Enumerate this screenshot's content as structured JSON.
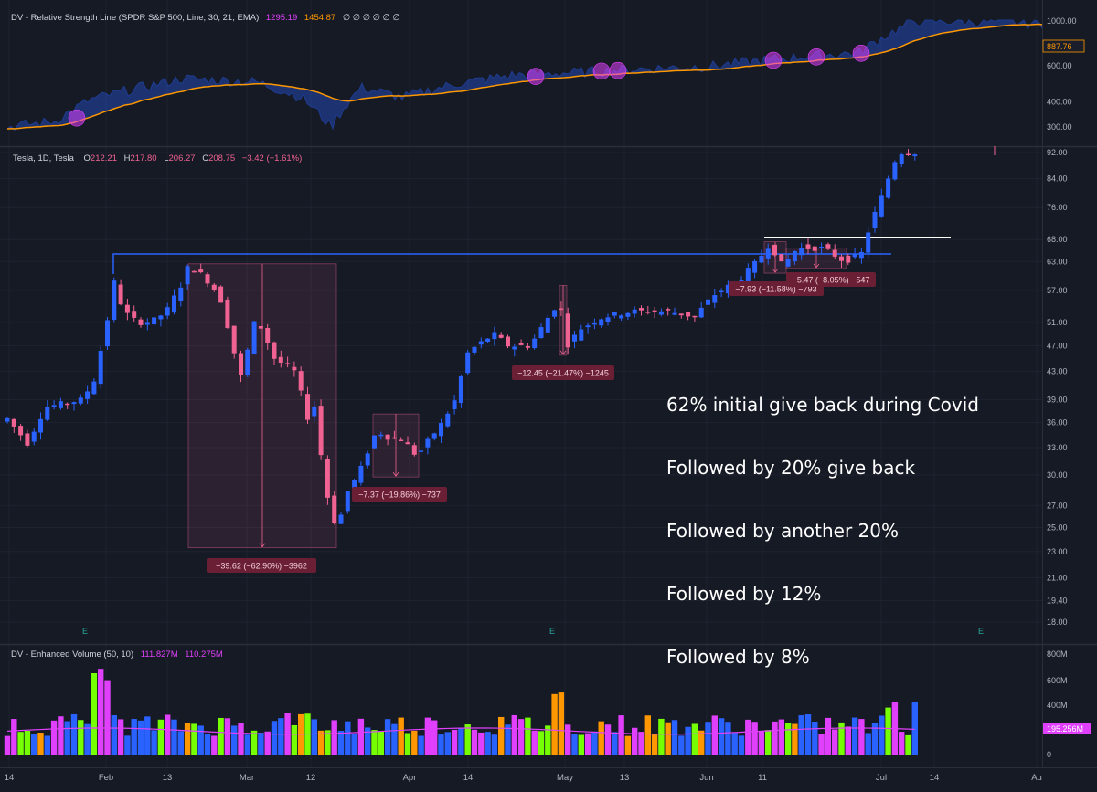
{
  "rs_panel": {
    "title": "DV - Relative Strength Line (SPDR S&P 500, Line, 30, 21, EMA)",
    "value1": "1295.19",
    "value2": "1454.87",
    "flags": "∅ ∅ ∅ ∅ ∅ ∅",
    "axis_ticks": [
      "1000.00",
      "600.00",
      "400.00",
      "300.00"
    ],
    "last_label": "887.76",
    "colors": {
      "line": "#2962ff",
      "ema": "#ff9800",
      "dot": "#e040fb"
    }
  },
  "price_panel": {
    "title": "Tesla, 1D, Tesla",
    "ohlc": {
      "o_label": "O",
      "o": "212.21",
      "h_label": "H",
      "h": "217.80",
      "l_label": "L",
      "l": "206.27",
      "c_label": "C",
      "c": "208.75"
    },
    "change": "−3.42 (−1.61%)",
    "axis_ticks": [
      "92.00",
      "84.00",
      "76.00",
      "68.00",
      "63.00",
      "57.00",
      "51.00",
      "47.00",
      "43.00",
      "39.00",
      "36.00",
      "33.00",
      "30.00",
      "27.00",
      "25.00",
      "23.00",
      "21.00",
      "19.40",
      "18.00"
    ],
    "earnings_marker": "E",
    "measurements": [
      {
        "label": "−39.62 (−62.90%) −3962"
      },
      {
        "label": "−7.37 (−19.86%) −737"
      },
      {
        "label": "−12.45 (−21.47%) −1245"
      },
      {
        "label": "−7.93 (−11.58%) −793"
      },
      {
        "label": "−5.47 (−8.05%) −547"
      }
    ],
    "annotation": [
      "62% initial give back during Covid",
      "Followed by 20% give back",
      "Followed by another 20%",
      "Followed by 12%",
      "Followed by 8%"
    ],
    "colors": {
      "up": "#2962ff",
      "down": "#f06292"
    }
  },
  "volume_panel": {
    "title": "DV - Enhanced Volume (50, 10)",
    "value1": "111.827M",
    "value2": "110.275M",
    "axis_ticks": [
      "800M",
      "600M",
      "400M",
      "200M",
      "0"
    ],
    "last_label": "195.256M"
  },
  "x_axis": [
    "14",
    "Feb",
    "13",
    "Mar",
    "12",
    "Apr",
    "14",
    "May",
    "13",
    "Jun",
    "11",
    "Jul",
    "14",
    "Au"
  ],
  "chart_data": {
    "type": "candlestick",
    "title": "Tesla, 1D, Tesla",
    "price_log_scale": true,
    "ylim": [
      18,
      93
    ],
    "anchors": [
      {
        "x": 8,
        "price": 36.5
      },
      {
        "x": 30,
        "price": 33.5
      },
      {
        "x": 50,
        "price": 38
      },
      {
        "x": 90,
        "price": 39
      },
      {
        "x": 104,
        "price": 42
      },
      {
        "x": 117,
        "price": 51
      },
      {
        "x": 124,
        "price": 59
      },
      {
        "x": 135,
        "price": 53
      },
      {
        "x": 150,
        "price": 51
      },
      {
        "x": 165,
        "price": 51
      },
      {
        "x": 182,
        "price": 53
      },
      {
        "x": 198,
        "price": 58
      },
      {
        "x": 206,
        "price": 62
      },
      {
        "x": 222,
        "price": 60
      },
      {
        "x": 240,
        "price": 56
      },
      {
        "x": 256,
        "price": 46
      },
      {
        "x": 264,
        "price": 42
      },
      {
        "x": 280,
        "price": 52
      },
      {
        "x": 300,
        "price": 45
      },
      {
        "x": 322,
        "price": 43
      },
      {
        "x": 338,
        "price": 36
      },
      {
        "x": 346,
        "price": 39
      },
      {
        "x": 352,
        "price": 31
      },
      {
        "x": 362,
        "price": 26
      },
      {
        "x": 370,
        "price": 25
      },
      {
        "x": 378,
        "price": 28
      },
      {
        "x": 392,
        "price": 30
      },
      {
        "x": 412,
        "price": 35
      },
      {
        "x": 428,
        "price": 34
      },
      {
        "x": 440,
        "price": 34
      },
      {
        "x": 456,
        "price": 32
      },
      {
        "x": 470,
        "price": 34
      },
      {
        "x": 484,
        "price": 36
      },
      {
        "x": 498,
        "price": 39
      },
      {
        "x": 512,
        "price": 46
      },
      {
        "x": 540,
        "price": 49
      },
      {
        "x": 556,
        "price": 47
      },
      {
        "x": 580,
        "price": 47
      },
      {
        "x": 596,
        "price": 51
      },
      {
        "x": 612,
        "price": 55
      },
      {
        "x": 620,
        "price": 47
      },
      {
        "x": 636,
        "price": 50
      },
      {
        "x": 660,
        "price": 52
      },
      {
        "x": 692,
        "price": 53
      },
      {
        "x": 730,
        "price": 53
      },
      {
        "x": 760,
        "price": 52
      },
      {
        "x": 780,
        "price": 56
      },
      {
        "x": 808,
        "price": 59
      },
      {
        "x": 828,
        "price": 63
      },
      {
        "x": 842,
        "price": 67
      },
      {
        "x": 856,
        "price": 62
      },
      {
        "x": 872,
        "price": 66
      },
      {
        "x": 900,
        "price": 66
      },
      {
        "x": 924,
        "price": 63
      },
      {
        "x": 944,
        "price": 65
      },
      {
        "x": 952,
        "price": 72
      },
      {
        "x": 960,
        "price": 76
      },
      {
        "x": 968,
        "price": 81
      },
      {
        "x": 976,
        "price": 88
      },
      {
        "x": 984,
        "price": 92
      },
      {
        "x": 1006,
        "price": 92
      }
    ],
    "rs_anchors": [
      {
        "x": 8,
        "value": 300
      },
      {
        "x": 60,
        "value": 320
      },
      {
        "x": 100,
        "value": 410
      },
      {
        "x": 200,
        "value": 520
      },
      {
        "x": 280,
        "value": 500
      },
      {
        "x": 330,
        "value": 420
      },
      {
        "x": 362,
        "value": 300
      },
      {
        "x": 395,
        "value": 470
      },
      {
        "x": 440,
        "value": 420
      },
      {
        "x": 500,
        "value": 490
      },
      {
        "x": 560,
        "value": 540
      },
      {
        "x": 640,
        "value": 560
      },
      {
        "x": 700,
        "value": 580
      },
      {
        "x": 780,
        "value": 600
      },
      {
        "x": 850,
        "value": 650
      },
      {
        "x": 940,
        "value": 700
      },
      {
        "x": 1000,
        "value": 1000
      },
      {
        "x": 1080,
        "value": 990
      },
      {
        "x": 1140,
        "value": 970
      }
    ],
    "volume_ylim": [
      0,
      800
    ]
  }
}
